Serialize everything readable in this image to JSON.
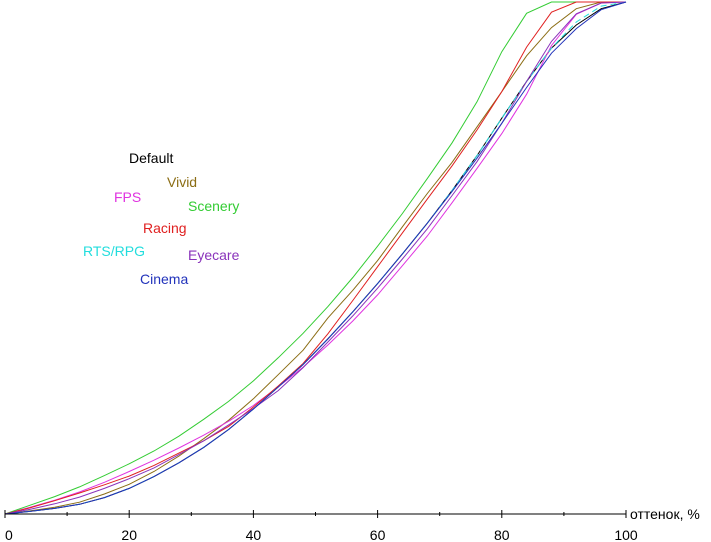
{
  "chart_data": {
    "type": "line",
    "xlabel": "оттенок, %",
    "ylabel": "",
    "xlim": [
      0,
      100
    ],
    "ylim": [
      0,
      100
    ],
    "x_ticks": [
      "0",
      "20",
      "40",
      "60",
      "80",
      "100"
    ],
    "grid": false,
    "x": [
      0,
      4,
      8,
      12,
      16,
      20,
      24,
      28,
      32,
      36,
      40,
      44,
      48,
      52,
      56,
      60,
      64,
      68,
      72,
      76,
      80,
      84,
      88,
      92,
      96,
      100
    ],
    "series": [
      {
        "name": "Default",
        "color": "#000000",
        "values": [
          0,
          0.5,
          1.1,
          1.9,
          3.2,
          5.0,
          7.3,
          10.0,
          13.0,
          16.5,
          20.5,
          24.8,
          29.2,
          34.2,
          39.5,
          45.0,
          50.8,
          56.8,
          63.2,
          70.0,
          77.3,
          84.5,
          91.0,
          95.5,
          98.7,
          100
        ]
      },
      {
        "name": "Vivid",
        "color": "#8b6d14",
        "values": [
          0,
          0.6,
          1.3,
          2.3,
          3.9,
          5.8,
          8.3,
          11.3,
          14.7,
          18.3,
          22.5,
          27.2,
          32.0,
          38.3,
          43.7,
          49.5,
          56.1,
          62.6,
          68.7,
          75.6,
          82.5,
          89.5,
          95.0,
          98.7,
          100,
          100
        ]
      },
      {
        "name": "FPS",
        "color": "#e033e0",
        "values": [
          0,
          1.3,
          2.7,
          4.3,
          6.2,
          8.3,
          10.5,
          12.9,
          15.4,
          18.1,
          21.2,
          24.8,
          28.7,
          33.0,
          37.7,
          42.8,
          48.5,
          54.3,
          60.8,
          67.5,
          74.3,
          82.0,
          91.5,
          97.6,
          99.8,
          100
        ]
      },
      {
        "name": "Scenery",
        "color": "#33cc33",
        "values": [
          0,
          1.7,
          3.4,
          5.3,
          7.5,
          9.8,
          12.3,
          15.2,
          18.5,
          22.0,
          26.0,
          30.5,
          35.3,
          40.5,
          46.2,
          52.3,
          58.7,
          65.5,
          72.5,
          80.5,
          90.3,
          97.8,
          100,
          100,
          100,
          100
        ]
      },
      {
        "name": "Racing",
        "color": "#e02020",
        "values": [
          0,
          1.2,
          2.6,
          4.1,
          5.7,
          7.4,
          9.5,
          11.9,
          14.3,
          17.1,
          20.9,
          25.0,
          29.4,
          35.2,
          41.7,
          48.3,
          54.9,
          61.5,
          68.0,
          75.0,
          82.5,
          91.2,
          98.0,
          100,
          100,
          100
        ]
      },
      {
        "name": "RTS/RPG",
        "color": "#22dddd",
        "values": [
          0,
          0.5,
          1.1,
          1.9,
          3.2,
          5.0,
          7.3,
          10.0,
          13.0,
          16.5,
          20.5,
          24.8,
          29.2,
          34.2,
          39.5,
          45.0,
          50.8,
          56.8,
          63.2,
          70.0,
          77.3,
          84.5,
          91.0,
          96.1,
          99.2,
          100
        ]
      },
      {
        "name": "Eyecare",
        "color": "#8a33bb",
        "values": [
          0,
          0.9,
          2.0,
          3.3,
          5.0,
          6.9,
          9.0,
          11.6,
          14.3,
          17.4,
          20.6,
          24.1,
          28.6,
          33.6,
          38.7,
          44.1,
          49.8,
          55.7,
          62.2,
          68.8,
          76.3,
          84.5,
          92.3,
          97.7,
          99.8,
          100
        ]
      },
      {
        "name": "Cinema",
        "color": "#2233bb",
        "values": [
          0,
          0.5,
          1.1,
          1.9,
          3.2,
          5.0,
          7.3,
          10.0,
          13.0,
          16.5,
          20.5,
          24.8,
          29.2,
          34.2,
          39.5,
          45.0,
          50.8,
          56.8,
          63.0,
          69.5,
          76.3,
          83.3,
          90.0,
          94.8,
          98.5,
          100
        ]
      }
    ],
    "legend_location": "center-left"
  }
}
